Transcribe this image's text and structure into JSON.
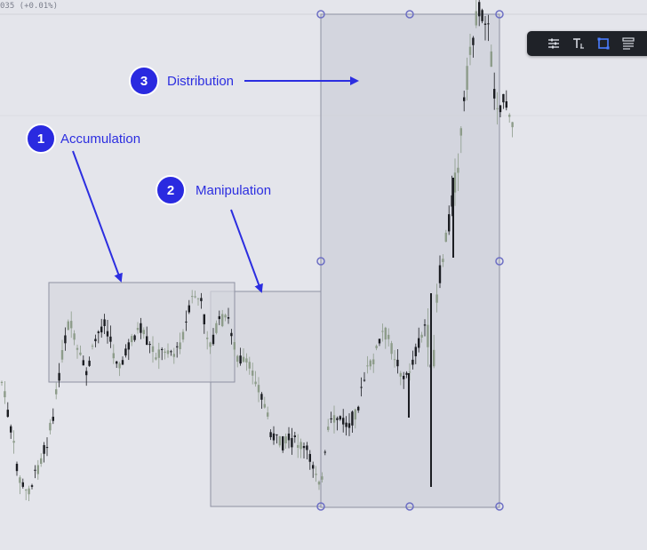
{
  "header": {
    "price_readout": "035 (+0.01%)"
  },
  "toolbar": {
    "buttons": [
      {
        "name": "settings-sliders-icon"
      },
      {
        "name": "text-tool-icon"
      },
      {
        "name": "rectangle-tool-icon",
        "active": true
      },
      {
        "name": "template-lines-icon"
      }
    ]
  },
  "annotations": [
    {
      "number": "1",
      "label": "Accumulation"
    },
    {
      "number": "2",
      "label": "Manipulation"
    },
    {
      "number": "3",
      "label": "Distribution"
    }
  ],
  "colors": {
    "background": "#e4e5eb",
    "candle": "#1b1d22",
    "candle_light": "#8d9c8a",
    "box_fill": "#c9cbd6",
    "box_border": "#8e91a2",
    "handle": "#6d6fc4",
    "badge_fill": "#2a2ae0",
    "label_color": "#2c2ee0",
    "arrow_color": "#2c2ee0",
    "toolbar_bg": "#1f2228"
  }
}
